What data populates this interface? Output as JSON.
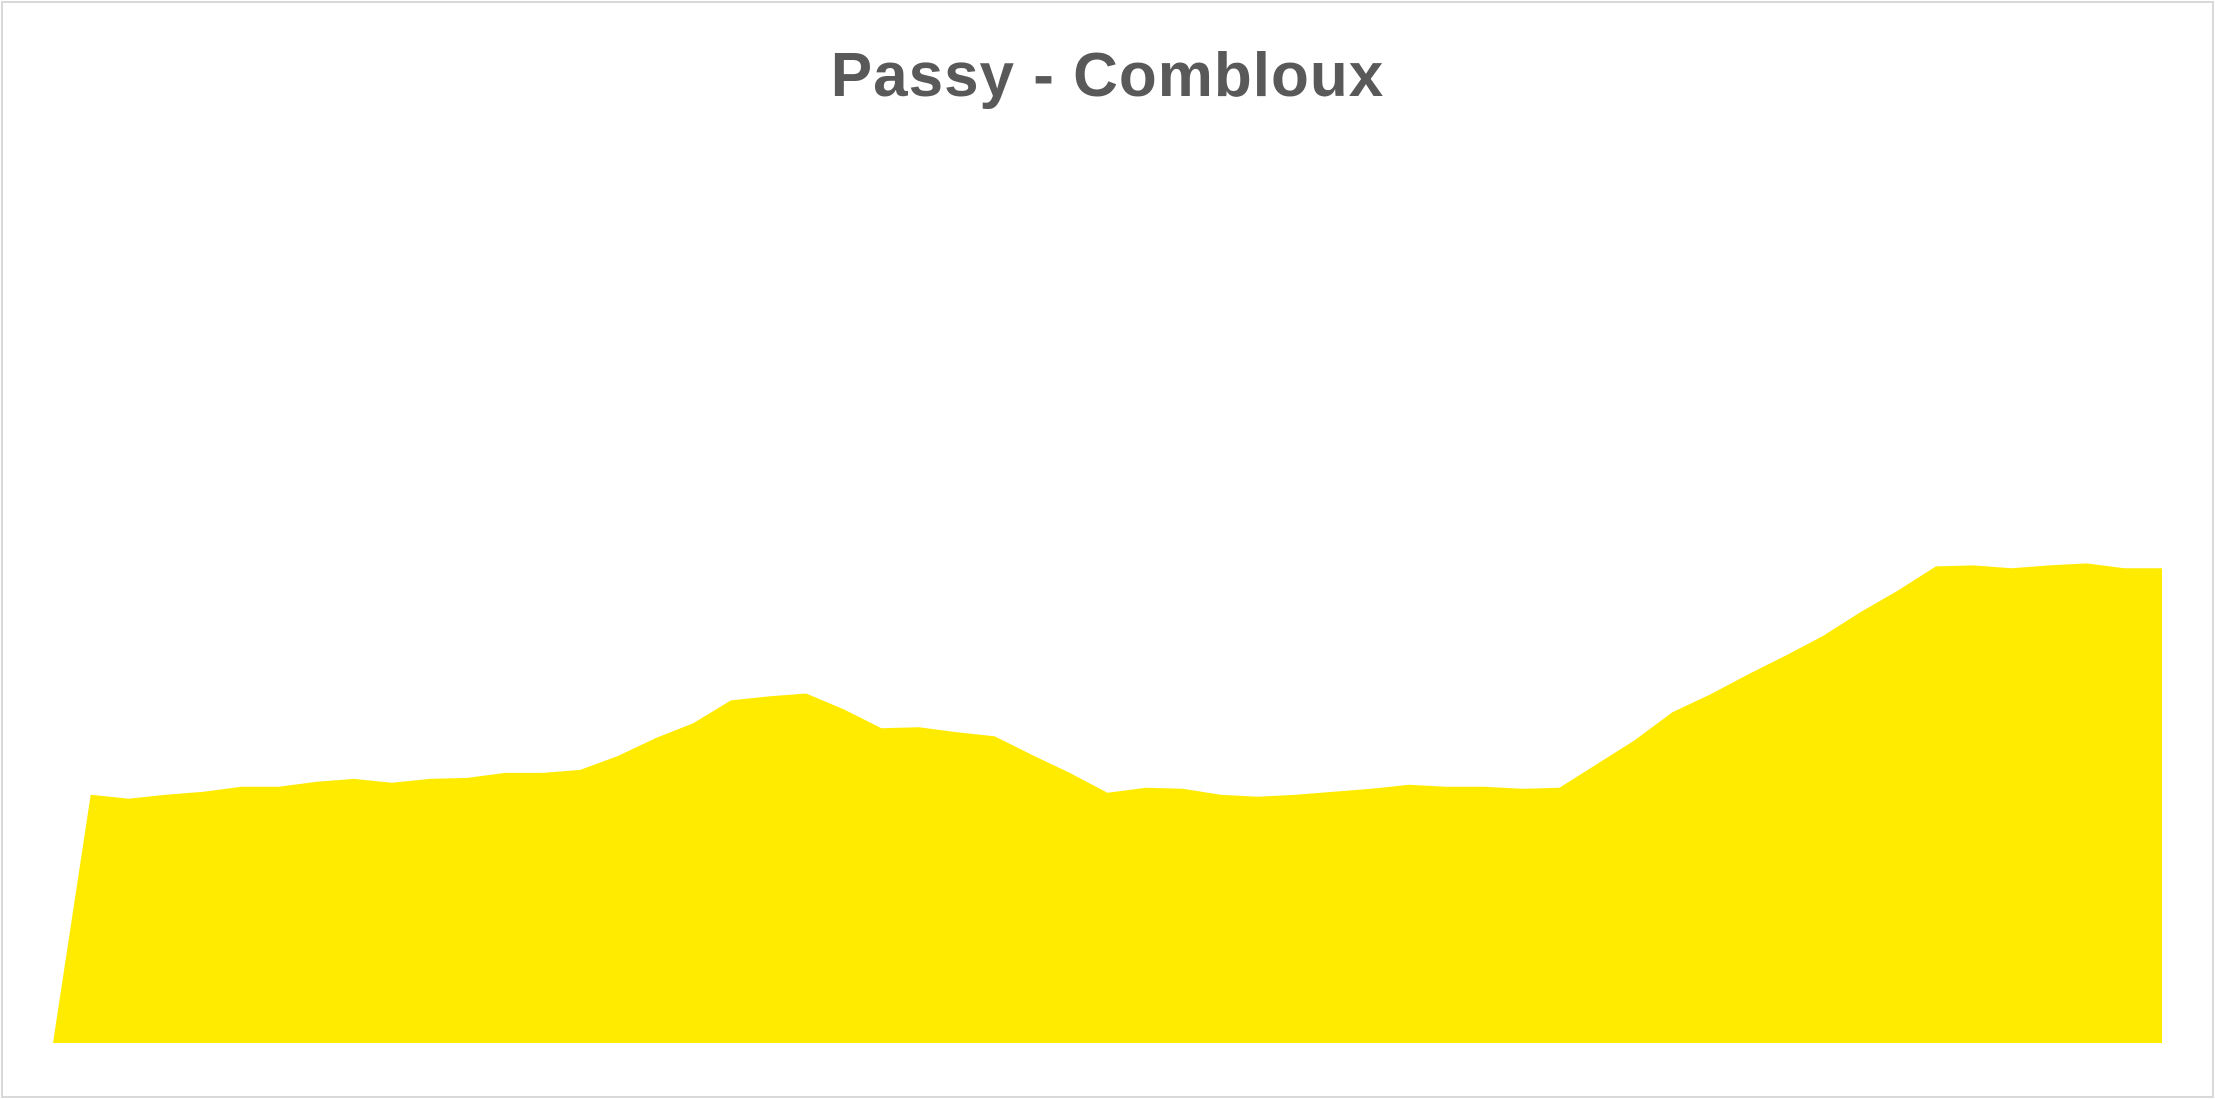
{
  "chart_data": {
    "type": "area",
    "title": "Passy - Combloux",
    "xlabel": "",
    "ylabel": "",
    "grid": false,
    "legend": "none",
    "x": [
      0,
      1,
      2,
      3,
      4,
      5,
      6,
      7,
      8,
      9,
      10,
      11,
      12,
      13,
      14,
      15,
      16,
      17,
      18,
      19,
      20,
      21,
      22,
      23,
      24,
      25,
      26,
      27,
      28,
      29,
      30,
      31,
      32,
      33,
      34,
      35,
      36,
      37,
      38,
      39,
      40,
      41,
      42,
      43,
      44,
      45,
      46,
      47,
      48,
      49,
      50,
      51,
      52,
      53,
      54,
      55,
      56
    ],
    "values": [
      0,
      250,
      246,
      250,
      253,
      258,
      258,
      263,
      266,
      262,
      266,
      267,
      272,
      272,
      275,
      289,
      307,
      322,
      345,
      349,
      352,
      336,
      317,
      318,
      313,
      309,
      290,
      272,
      252,
      257,
      256,
      250,
      248,
      250,
      253,
      256,
      260,
      258,
      258,
      256,
      257,
      281,
      305,
      333,
      351,
      371,
      390,
      410,
      434,
      456,
      480,
      481,
      478,
      481,
      483,
      478,
      478
    ],
    "ylim": [
      0,
      1000
    ],
    "colors": {
      "fill": "#FFEB00",
      "title": "#595959",
      "border": "#D9D9D9"
    }
  }
}
